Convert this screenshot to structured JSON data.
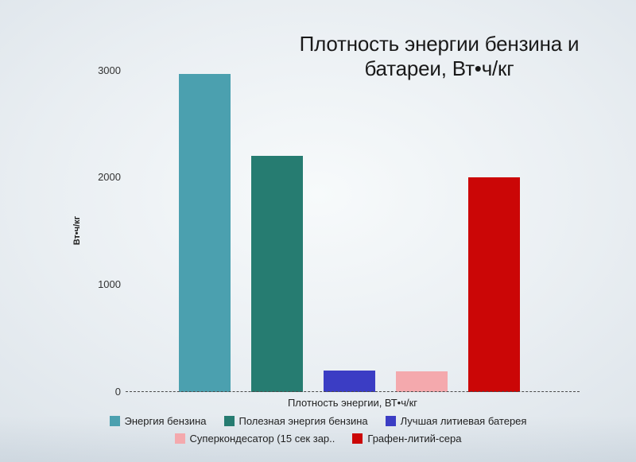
{
  "chart_data": {
    "type": "bar",
    "title": "Плотность энергии бензина и батареи, Вт•ч/кг",
    "ylabel": "Вт•ч/кг",
    "xlabel": "Плотность энергии, ВТ•ч/кг",
    "ylim": [
      0,
      3000
    ],
    "yticks": [
      0,
      1000,
      2000,
      3000
    ],
    "grid": false,
    "legend_position": "bottom",
    "legend_rows": [
      3,
      2
    ],
    "series": [
      {
        "name": "Энергия бензина",
        "legend_label": "Энергия бензина",
        "value": 2970,
        "color": "#4ba0af"
      },
      {
        "name": "Полезная энергия бензина",
        "legend_label": "Полезная энергия бензина",
        "value": 2200,
        "color": "#267c71"
      },
      {
        "name": "Лучшая литиевая батерея",
        "legend_label": "Лучшая литиевая батерея",
        "value": 200,
        "color": "#3b3dc4"
      },
      {
        "name": "Суперкондесатор (15 сек зар..",
        "legend_label": "Суперкондесатор (15 сек зар..",
        "value": 190,
        "color": "#f4a9ad"
      },
      {
        "name": "Графен-литий-сера",
        "legend_label": "Графен-литий-сера",
        "value": 2000,
        "color": "#cb0606"
      }
    ],
    "colors": {
      "title_text": "#1a1a1a",
      "axis_text": "#333333",
      "baseline": "#4a4a4a"
    }
  }
}
